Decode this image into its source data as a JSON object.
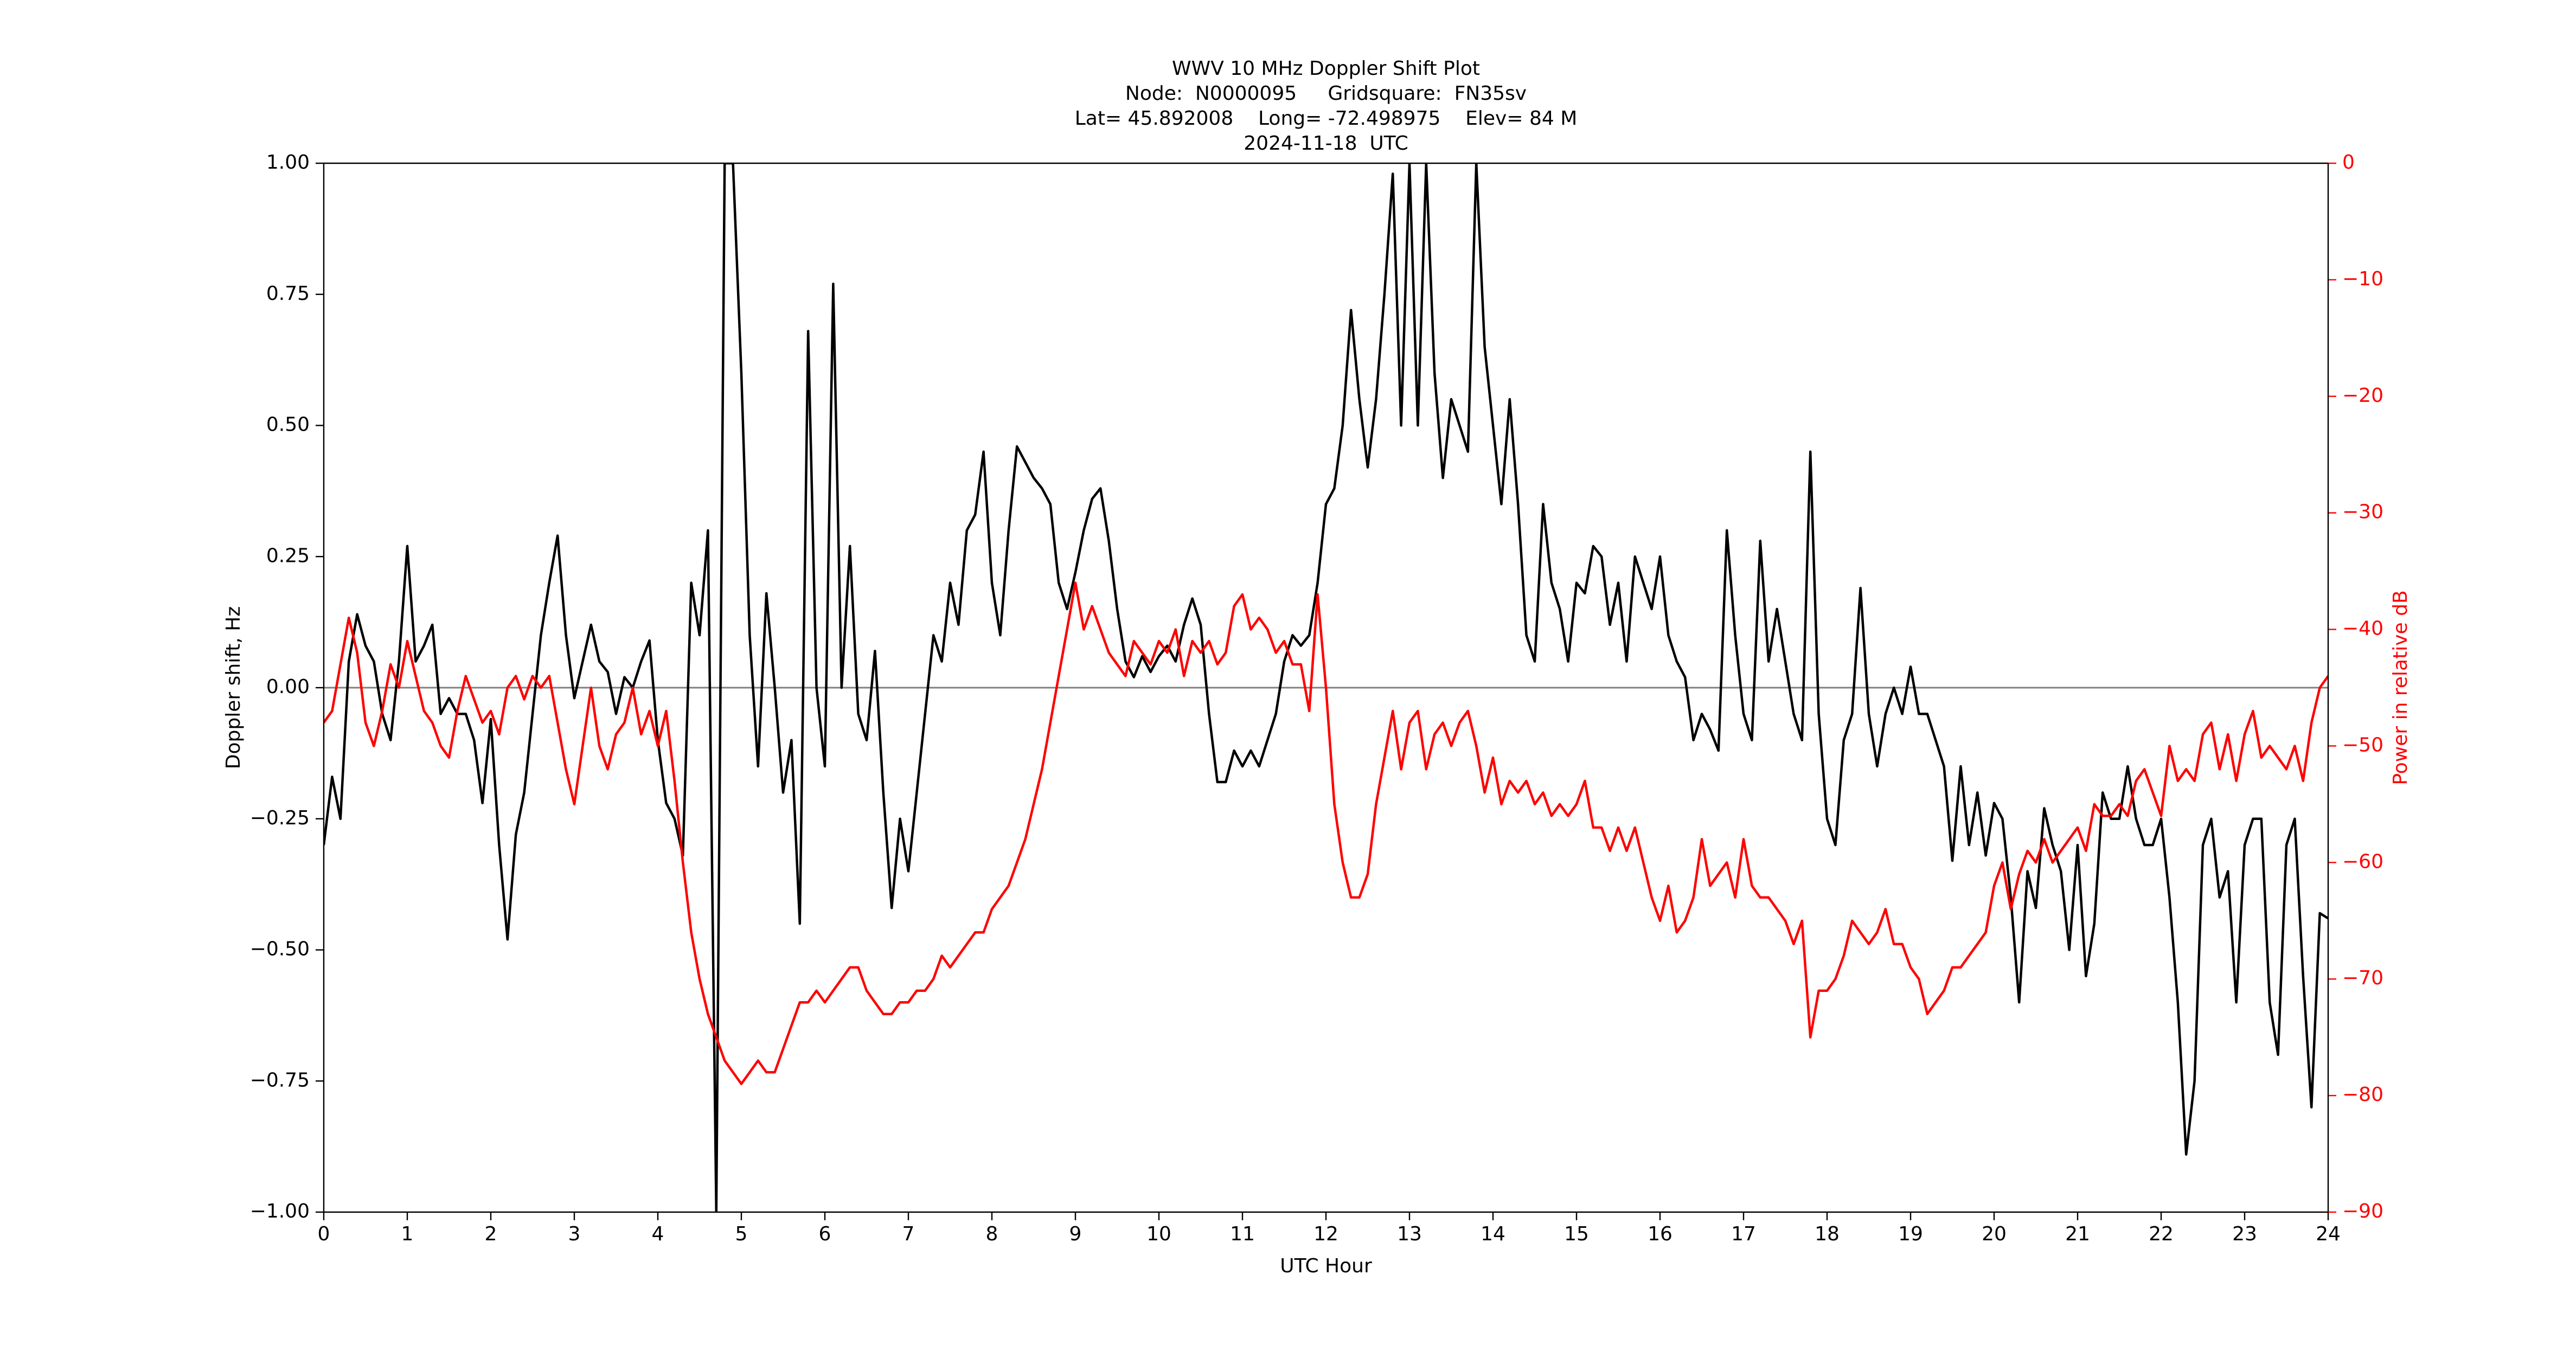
{
  "chart_data": {
    "type": "line",
    "title": [
      "WWV 10 MHz Doppler Shift Plot",
      "Node:  N0000095     Gridsquare:  FN35sv",
      "Lat= 45.892008    Long= -72.498975    Elev= 84 M",
      "2024-11-18  UTC"
    ],
    "xlabel": "UTC Hour",
    "ylabel": "Doppler shift, Hz",
    "y2label": "Power in relative dB",
    "xlim": [
      0,
      24
    ],
    "xticks": [
      0,
      1,
      2,
      3,
      4,
      5,
      6,
      7,
      8,
      9,
      10,
      11,
      12,
      13,
      14,
      15,
      16,
      17,
      18,
      19,
      20,
      21,
      22,
      23,
      24
    ],
    "ylim": [
      -1,
      1
    ],
    "yticks": [
      {
        "value": -1,
        "label": "−1.00"
      },
      {
        "value": -0.75,
        "label": "−0.75"
      },
      {
        "value": -0.5,
        "label": "−0.50"
      },
      {
        "value": -0.25,
        "label": "−0.25"
      },
      {
        "value": 0,
        "label": "0.00"
      },
      {
        "value": 0.25,
        "label": "0.25"
      },
      {
        "value": 0.5,
        "label": "0.50"
      },
      {
        "value": 0.75,
        "label": "0.75"
      },
      {
        "value": 1,
        "label": "1.00"
      }
    ],
    "y2lim": [
      -90,
      0
    ],
    "y2ticks": [
      {
        "value": -90,
        "label": "−90"
      },
      {
        "value": -80,
        "label": "−80"
      },
      {
        "value": -70,
        "label": "−70"
      },
      {
        "value": -60,
        "label": "−60"
      },
      {
        "value": -50,
        "label": "−50"
      },
      {
        "value": -40,
        "label": "−40"
      },
      {
        "value": -30,
        "label": "−30"
      },
      {
        "value": -20,
        "label": "−20"
      },
      {
        "value": -10,
        "label": "−10"
      },
      0
    ],
    "y2color": "#ff0000",
    "hline": 0,
    "hline_color": "#808080",
    "x": [
      0,
      0.1,
      0.2,
      0.3,
      0.4,
      0.5,
      0.6,
      0.7,
      0.8,
      0.9,
      1,
      1.1,
      1.2,
      1.3,
      1.4,
      1.5,
      1.6,
      1.7,
      1.8,
      1.9,
      2,
      2.1,
      2.2,
      2.3,
      2.4,
      2.5,
      2.6,
      2.7,
      2.8,
      2.9,
      3,
      3.1,
      3.2,
      3.3,
      3.4,
      3.5,
      3.6,
      3.7,
      3.8,
      3.9,
      4,
      4.1,
      4.2,
      4.3,
      4.4,
      4.5,
      4.6,
      4.7,
      4.8,
      4.9,
      5,
      5.1,
      5.2,
      5.3,
      5.4,
      5.5,
      5.6,
      5.7,
      5.8,
      5.9,
      6,
      6.1,
      6.2,
      6.3,
      6.4,
      6.5,
      6.6,
      6.7,
      6.8,
      6.9,
      7,
      7.1,
      7.2,
      7.3,
      7.4,
      7.5,
      7.6,
      7.7,
      7.8,
      7.9,
      8,
      8.1,
      8.2,
      8.3,
      8.4,
      8.5,
      8.6,
      8.7,
      8.8,
      8.9,
      9,
      9.1,
      9.2,
      9.3,
      9.4,
      9.5,
      9.6,
      9.7,
      9.8,
      9.9,
      10,
      10.1,
      10.2,
      10.3,
      10.4,
      10.5,
      10.6,
      10.7,
      10.8,
      10.9,
      11,
      11.1,
      11.2,
      11.3,
      11.4,
      11.5,
      11.6,
      11.7,
      11.8,
      11.9,
      12,
      12.1,
      12.2,
      12.3,
      12.4,
      12.5,
      12.6,
      12.7,
      12.8,
      12.9,
      13,
      13.1,
      13.2,
      13.3,
      13.4,
      13.5,
      13.6,
      13.7,
      13.8,
      13.9,
      14,
      14.1,
      14.2,
      14.3,
      14.4,
      14.5,
      14.6,
      14.7,
      14.8,
      14.9,
      15,
      15.1,
      15.2,
      15.3,
      15.4,
      15.5,
      15.6,
      15.7,
      15.8,
      15.9,
      16,
      16.1,
      16.2,
      16.3,
      16.4,
      16.5,
      16.6,
      16.7,
      16.8,
      16.9,
      17,
      17.1,
      17.2,
      17.3,
      17.4,
      17.5,
      17.6,
      17.7,
      17.8,
      17.9,
      18,
      18.1,
      18.2,
      18.3,
      18.4,
      18.5,
      18.6,
      18.7,
      18.8,
      18.9,
      19,
      19.1,
      19.2,
      19.3,
      19.4,
      19.5,
      19.6,
      19.7,
      19.8,
      19.9,
      20,
      20.1,
      20.2,
      20.3,
      20.4,
      20.5,
      20.6,
      20.7,
      20.8,
      20.9,
      21,
      21.1,
      21.2,
      21.3,
      21.4,
      21.5,
      21.6,
      21.7,
      21.8,
      21.9,
      22,
      22.1,
      22.2,
      22.3,
      22.4,
      22.5,
      22.6,
      22.7,
      22.8,
      22.9,
      23,
      23.1,
      23.2,
      23.3,
      23.4,
      23.5,
      23.6,
      23.7,
      23.8,
      23.9,
      24
    ],
    "series": [
      {
        "color": "#000000",
        "values": [
          -0.3,
          -0.17,
          -0.25,
          0.05,
          0.14,
          0.08,
          0.05,
          -0.05,
          -0.1,
          0.05,
          0.27,
          0.05,
          0.08,
          0.12,
          -0.05,
          -0.02,
          -0.05,
          -0.05,
          -0.1,
          -0.22,
          -0.06,
          -0.3,
          -0.48,
          -0.28,
          -0.2,
          -0.05,
          0.1,
          0.2,
          0.29,
          0.1,
          -0.02,
          0.05,
          0.12,
          0.05,
          0.03,
          -0.05,
          0.02,
          0,
          0.05,
          0.09,
          -0.1,
          -0.22,
          -0.25,
          -0.32,
          0.2,
          0.1,
          0.3,
          -1,
          1,
          1,
          0.6,
          0.1,
          -0.15,
          0.18,
          0,
          -0.2,
          -0.1,
          -0.45,
          0.68,
          0,
          -0.15,
          0.77,
          0,
          0.27,
          -0.05,
          -0.1,
          0.07,
          -0.2,
          -0.42,
          -0.25,
          -0.35,
          -0.2,
          -0.05,
          0.1,
          0.05,
          0.2,
          0.12,
          0.3,
          0.33,
          0.45,
          0.2,
          0.1,
          0.3,
          0.46,
          0.43,
          0.4,
          0.38,
          0.35,
          0.2,
          0.15,
          0.22,
          0.3,
          0.36,
          0.38,
          0.28,
          0.15,
          0.05,
          0.02,
          0.06,
          0.03,
          0.06,
          0.08,
          0.05,
          0.12,
          0.17,
          0.12,
          -0.05,
          -0.18,
          -0.18,
          -0.12,
          -0.15,
          -0.12,
          -0.15,
          -0.1,
          -0.05,
          0.05,
          0.1,
          0.08,
          0.1,
          0.2,
          0.35,
          0.38,
          0.5,
          0.72,
          0.55,
          0.42,
          0.55,
          0.75,
          0.98,
          0.5,
          1,
          0.5,
          1,
          0.6,
          0.4,
          0.55,
          0.5,
          0.45,
          1,
          0.65,
          0.5,
          0.35,
          0.55,
          0.35,
          0.1,
          0.05,
          0.35,
          0.2,
          0.15,
          0.05,
          0.2,
          0.18,
          0.27,
          0.25,
          0.12,
          0.2,
          0.05,
          0.25,
          0.2,
          0.15,
          0.25,
          0.1,
          0.05,
          0.02,
          -0.1,
          -0.05,
          -0.08,
          -0.12,
          0.3,
          0.1,
          -0.05,
          -0.1,
          0.28,
          0.05,
          0.15,
          0.05,
          -0.05,
          -0.1,
          0.45,
          -0.05,
          -0.25,
          -0.3,
          -0.1,
          -0.05,
          0.19,
          -0.05,
          -0.15,
          -0.05,
          0,
          -0.05,
          0.04,
          -0.05,
          -0.05,
          -0.1,
          -0.15,
          -0.33,
          -0.15,
          -0.3,
          -0.2,
          -0.32,
          -0.22,
          -0.25,
          -0.4,
          -0.6,
          -0.35,
          -0.42,
          -0.23,
          -0.3,
          -0.35,
          -0.5,
          -0.3,
          -0.55,
          -0.45,
          -0.2,
          -0.25,
          -0.25,
          -0.15,
          -0.25,
          -0.3,
          -0.3,
          -0.25,
          -0.4,
          -0.6,
          -0.89,
          -0.75,
          -0.3,
          -0.25,
          -0.4,
          -0.35,
          -0.6,
          -0.3,
          -0.25,
          -0.25,
          -0.6,
          -0.7,
          -0.3,
          -0.25,
          -0.55,
          -0.8,
          -0.43,
          -0.44
        ]
      },
      {
        "color": "#ff0000",
        "axis": "y2",
        "values": [
          -48,
          -47,
          -43,
          -39,
          -42,
          -48,
          -50,
          -47,
          -43,
          -45,
          -41,
          -44,
          -47,
          -48,
          -50,
          -51,
          -47,
          -44,
          -46,
          -48,
          -47,
          -49,
          -45,
          -44,
          -46,
          -44,
          -45,
          -44,
          -48,
          -52,
          -55,
          -50,
          -45,
          -50,
          -52,
          -49,
          -48,
          -45,
          -49,
          -47,
          -50,
          -47,
          -53,
          -60,
          -66,
          -70,
          -73,
          -75,
          -77,
          -78,
          -79,
          -78,
          -77,
          -78,
          -78,
          -76,
          -74,
          -72,
          -72,
          -71,
          -72,
          -71,
          -70,
          -69,
          -69,
          -71,
          -72,
          -73,
          -73,
          -72,
          -72,
          -71,
          -71,
          -70,
          -68,
          -69,
          -68,
          -67,
          -66,
          -66,
          -64,
          -63,
          -62,
          -60,
          -58,
          -55,
          -52,
          -48,
          -44,
          -40,
          -36,
          -40,
          -38,
          -40,
          -42,
          -43,
          -44,
          -41,
          -42,
          -43,
          -41,
          -42,
          -40,
          -44,
          -41,
          -42,
          -41,
          -43,
          -42,
          -38,
          -37,
          -40,
          -39,
          -40,
          -42,
          -41,
          -43,
          -43,
          -47,
          -37,
          -45,
          -55,
          -60,
          -63,
          -63,
          -61,
          -55,
          -51,
          -47,
          -52,
          -48,
          -47,
          -52,
          -49,
          -48,
          -50,
          -48,
          -47,
          -50,
          -54,
          -51,
          -55,
          -53,
          -54,
          -53,
          -55,
          -54,
          -56,
          -55,
          -56,
          -55,
          -53,
          -57,
          -57,
          -59,
          -57,
          -59,
          -57,
          -60,
          -63,
          -65,
          -62,
          -66,
          -65,
          -63,
          -58,
          -62,
          -61,
          -60,
          -63,
          -58,
          -62,
          -63,
          -63,
          -64,
          -65,
          -67,
          -65,
          -75,
          -71,
          -71,
          -70,
          -68,
          -65,
          -66,
          -67,
          -66,
          -64,
          -67,
          -67,
          -69,
          -70,
          -73,
          -72,
          -71,
          -69,
          -69,
          -68,
          -67,
          -66,
          -62,
          -60,
          -64,
          -61,
          -59,
          -60,
          -58,
          -60,
          -59,
          -58,
          -57,
          -59,
          -55,
          -56,
          -56,
          -55,
          -56,
          -53,
          -52,
          -54,
          -56,
          -50,
          -53,
          -52,
          -53,
          -49,
          -48,
          -52,
          -49,
          -53,
          -49,
          -47,
          -51,
          -50,
          -51,
          -52,
          -50,
          -53,
          -48,
          -45,
          -44
        ]
      }
    ]
  }
}
